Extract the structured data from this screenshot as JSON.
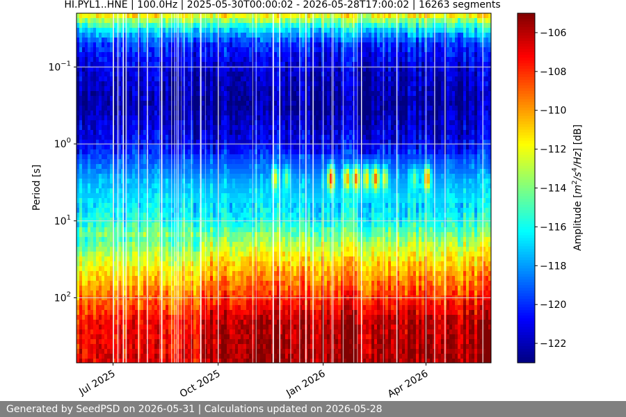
{
  "chart_data": {
    "type": "heatmap",
    "title": "HI.PYL1..HNE | 100.0Hz | 2025-05-30T00:00:02 - 2026-05-28T17:00:02 | 16263 segments",
    "ylabel": "Period [s]",
    "colorbar_label": "Amplitude [m²/s⁴/Hz] [dB]",
    "colorbar_label_parts": [
      "Amplitude [",
      "m",
      "2",
      "/s",
      "4",
      "/Hz",
      "] [dB]"
    ],
    "x_range": [
      "2025-05-30",
      "2026-05-28"
    ],
    "x_ticks": [
      {
        "date": "2025-07-01",
        "label": "Jul 2025"
      },
      {
        "date": "2025-10-01",
        "label": "Oct 2025"
      },
      {
        "date": "2026-01-01",
        "label": "Jan 2026"
      },
      {
        "date": "2026-04-01",
        "label": "Apr 2026"
      }
    ],
    "y_scale": "log",
    "y_inverted": true,
    "y_range": [
      0.02,
      700
    ],
    "y_ticks": [
      {
        "value": 0.1,
        "base": "10",
        "exp": "−1"
      },
      {
        "value": 1,
        "base": "10",
        "exp": "0"
      },
      {
        "value": 10,
        "base": "10",
        "exp": "1"
      },
      {
        "value": 100,
        "base": "10",
        "exp": "2"
      }
    ],
    "grid": true,
    "colormap": "jet",
    "color_range": [
      -123,
      -105
    ],
    "colorbar_ticks": [
      -106,
      -108,
      -110,
      -112,
      -114,
      -116,
      -118,
      -120,
      -122
    ],
    "colorbar_tick_labels": [
      "−106",
      "−108",
      "−110",
      "−112",
      "−114",
      "−116",
      "−118",
      "−120",
      "−122"
    ],
    "period_profile": [
      {
        "period": 0.02,
        "db": -111
      },
      {
        "period": 0.03,
        "db": -116
      },
      {
        "period": 0.05,
        "db": -120
      },
      {
        "period": 0.1,
        "db": -121.5
      },
      {
        "period": 0.3,
        "db": -122.5
      },
      {
        "period": 1,
        "db": -121
      },
      {
        "period": 3,
        "db": -118
      },
      {
        "period": 10,
        "db": -116
      },
      {
        "period": 20,
        "db": -113
      },
      {
        "period": 40,
        "db": -110.5
      },
      {
        "period": 100,
        "db": -108
      },
      {
        "period": 200,
        "db": -106
      },
      {
        "period": 700,
        "db": -105.5
      }
    ],
    "microseism_events": [
      {
        "date": "2025-11-20",
        "db": -112
      },
      {
        "date": "2025-11-30",
        "db": -114
      },
      {
        "date": "2026-01-08",
        "db": -108
      },
      {
        "date": "2026-01-22",
        "db": -110
      },
      {
        "date": "2026-01-30",
        "db": -109
      },
      {
        "date": "2026-02-08",
        "db": -111
      },
      {
        "date": "2026-02-16",
        "db": -109
      },
      {
        "date": "2026-02-24",
        "db": -112
      },
      {
        "date": "2026-03-22",
        "db": -114
      },
      {
        "date": "2026-04-02",
        "db": -109
      }
    ]
  },
  "footer": {
    "text": "Generated by SeedPSD on 2026-05-31 | Calculations updated on 2026-05-28"
  }
}
